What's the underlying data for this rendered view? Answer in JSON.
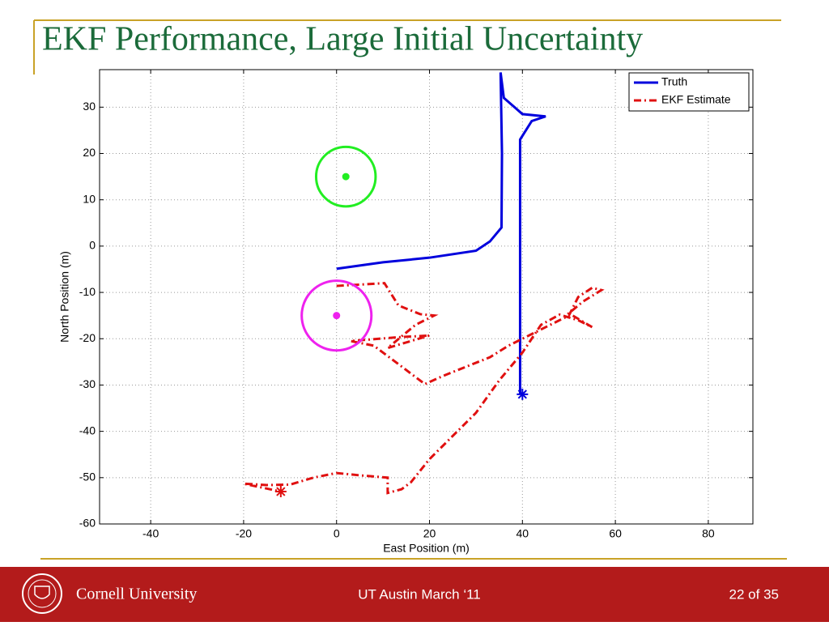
{
  "title": "EKF Performance, Large Initial Uncertainty",
  "chart_data": {
    "type": "line",
    "xlabel": "East Position (m)",
    "ylabel": "North Position (m)",
    "xlim": [
      -51,
      89.6
    ],
    "ylim": [
      -60,
      38.1
    ],
    "xticks": [
      -40,
      -20,
      0,
      20,
      40,
      60,
      80
    ],
    "yticks": [
      -60,
      -50,
      -40,
      -30,
      -20,
      -10,
      0,
      10,
      20,
      30
    ],
    "grid": true,
    "legend": "upper right",
    "series": [
      {
        "name": "Truth",
        "color": "#0000dd",
        "dash": "solid",
        "x": [
          0,
          10,
          20,
          30,
          33,
          35.5,
          35.6,
          35.3,
          36,
          40,
          45,
          42,
          39.5,
          39.5,
          39.5
        ],
        "values": [
          -4.9,
          -3.5,
          -2.5,
          -1,
          1,
          4,
          20,
          37.5,
          32,
          28.5,
          28,
          27,
          23,
          10,
          -32
        ]
      },
      {
        "name": "EKF Estimate",
        "color": "#e01010",
        "dash": "dashdot",
        "x": [
          0,
          10.3,
          13.3,
          18,
          21,
          17,
          11,
          20,
          13,
          3,
          8,
          14,
          19,
          23,
          28,
          33,
          37,
          44,
          50,
          52,
          55,
          57,
          53,
          50,
          55,
          52,
          48,
          44,
          40,
          35,
          30,
          26,
          20,
          16,
          14,
          11,
          11,
          5,
          0,
          -5,
          -10,
          -15,
          -20,
          -12
        ],
        "values": [
          -8.6,
          -8,
          -12.8,
          -14.7,
          -15,
          -17,
          -22,
          -19.3,
          -19.7,
          -20.5,
          -21.5,
          -26,
          -29.8,
          -28,
          -26,
          -24,
          -21.5,
          -18,
          -15,
          -11,
          -9,
          -9.5,
          -12,
          -14.5,
          -17.5,
          -16,
          -14.8,
          -17,
          -23,
          -29,
          -36,
          -40,
          -46,
          -51,
          -52.5,
          -53.3,
          -50,
          -49.5,
          -49,
          -50,
          -51.5,
          -51.6,
          -51.3,
          -53
        ]
      }
    ],
    "points": [
      {
        "x": 40,
        "y": -32,
        "color": "#0000dd"
      },
      {
        "x": -12,
        "y": -53,
        "color": "#e01010"
      },
      {
        "x": 2,
        "y": 15,
        "color": "#22ee22"
      },
      {
        "x": 0,
        "y": -15,
        "color": "#ee22ee"
      }
    ],
    "circles": [
      {
        "cx": 2,
        "cy": 15,
        "r": 6.4,
        "color": "#22ee22"
      },
      {
        "cx": 0,
        "cy": -15,
        "r": 7.5,
        "color": "#ee22ee"
      }
    ]
  },
  "footer": {
    "org": "Cornell University",
    "event": "UT Austin March ‘11",
    "page": "22 of 35"
  }
}
